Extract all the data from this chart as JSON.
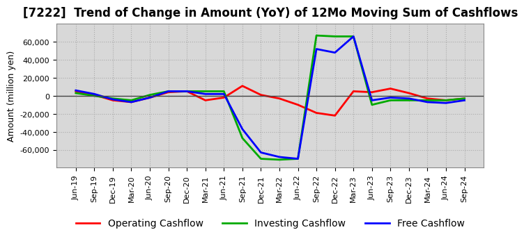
{
  "title": "[7222]  Trend of Change in Amount (YoY) of 12Mo Moving Sum of Cashflows",
  "ylabel": "Amount (million yen)",
  "x_labels": [
    "Jun-19",
    "Sep-19",
    "Dec-19",
    "Mar-20",
    "Jun-20",
    "Sep-20",
    "Dec-20",
    "Mar-21",
    "Jun-21",
    "Sep-21",
    "Dec-21",
    "Mar-22",
    "Jun-22",
    "Sep-22",
    "Dec-22",
    "Mar-23",
    "Jun-23",
    "Sep-23",
    "Dec-23",
    "Mar-24",
    "Jun-24",
    "Sep-24"
  ],
  "operating": [
    5000,
    1000,
    -5000,
    -7000,
    -2000,
    4000,
    5000,
    -5000,
    -2000,
    11000,
    1000,
    -3000,
    -10000,
    -19000,
    -22000,
    5000,
    4000,
    8000,
    3000,
    -3000,
    -5000,
    -3000
  ],
  "investing": [
    3000,
    0,
    -3000,
    -5000,
    1000,
    5000,
    5000,
    5000,
    5000,
    -47000,
    -70000,
    -71000,
    -70000,
    67000,
    66000,
    66000,
    -10000,
    -5000,
    -5000,
    -5000,
    -5000,
    -3000
  ],
  "free": [
    6000,
    2000,
    -4000,
    -7000,
    -2000,
    5000,
    5000,
    2000,
    2000,
    -37000,
    -63000,
    -68000,
    -70000,
    52000,
    48000,
    66000,
    -5000,
    -2000,
    -3000,
    -7000,
    -8000,
    -5000
  ],
  "operating_color": "#ff0000",
  "investing_color": "#00aa00",
  "free_color": "#0000ff",
  "ylim": [
    -80000,
    80000
  ],
  "yticks": [
    -60000,
    -40000,
    -20000,
    0,
    20000,
    40000,
    60000
  ],
  "background_color": "#ffffff",
  "plot_bg_color": "#d8d8d8",
  "grid_color": "#aaaaaa",
  "title_fontsize": 12,
  "axis_fontsize": 9,
  "tick_fontsize": 8,
  "legend_fontsize": 10,
  "linewidth": 2.0
}
